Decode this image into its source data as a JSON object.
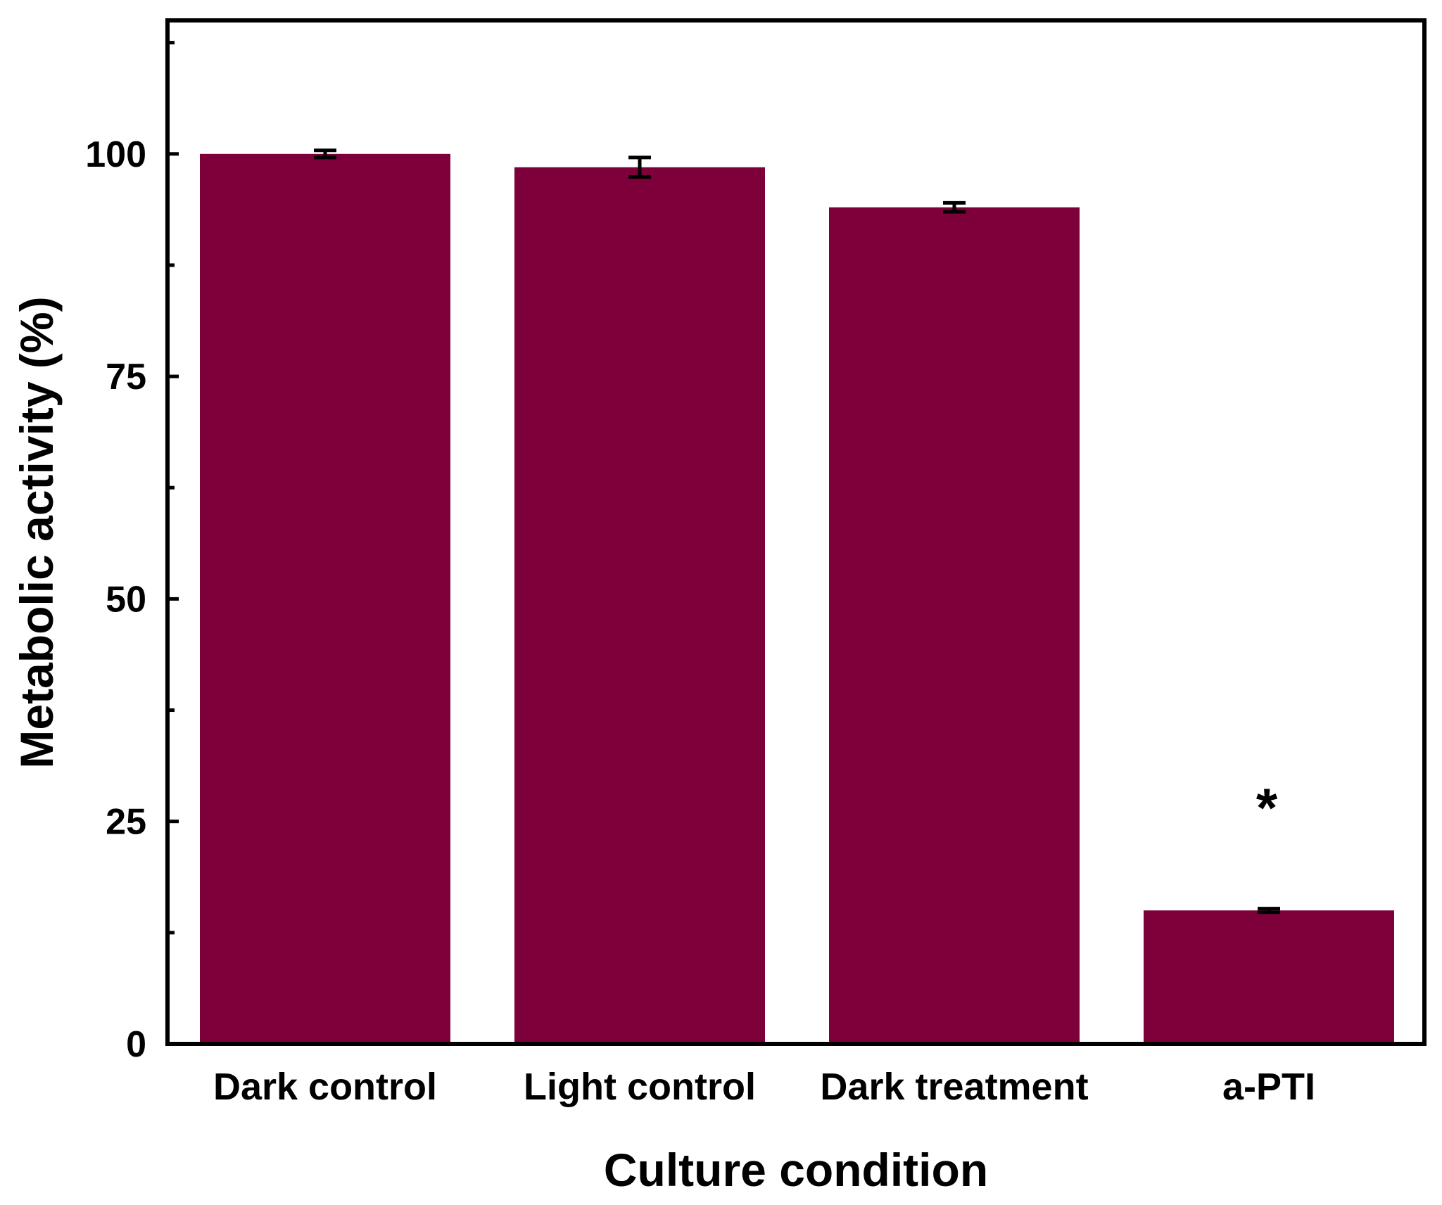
{
  "chart_data": {
    "type": "bar",
    "categories": [
      "Dark control",
      "Light control",
      "Dark treatment",
      "a-PTI"
    ],
    "values": [
      100,
      98.5,
      94,
      15
    ],
    "errors": [
      0.4,
      1.1,
      0.5,
      0.2
    ],
    "xlabel": "Culture condition",
    "ylabel": "Metabolic activity (%)",
    "ylim": [
      0,
      115
    ],
    "yticks": [
      0,
      25,
      50,
      75,
      100
    ],
    "yticks_minor": [
      12.5,
      37.5,
      62.5,
      87.5,
      112.5
    ],
    "annotations": [
      {
        "category": "a-PTI",
        "text": "*"
      }
    ],
    "bar_color": "#7d003a",
    "grid": false,
    "legend": "none"
  }
}
